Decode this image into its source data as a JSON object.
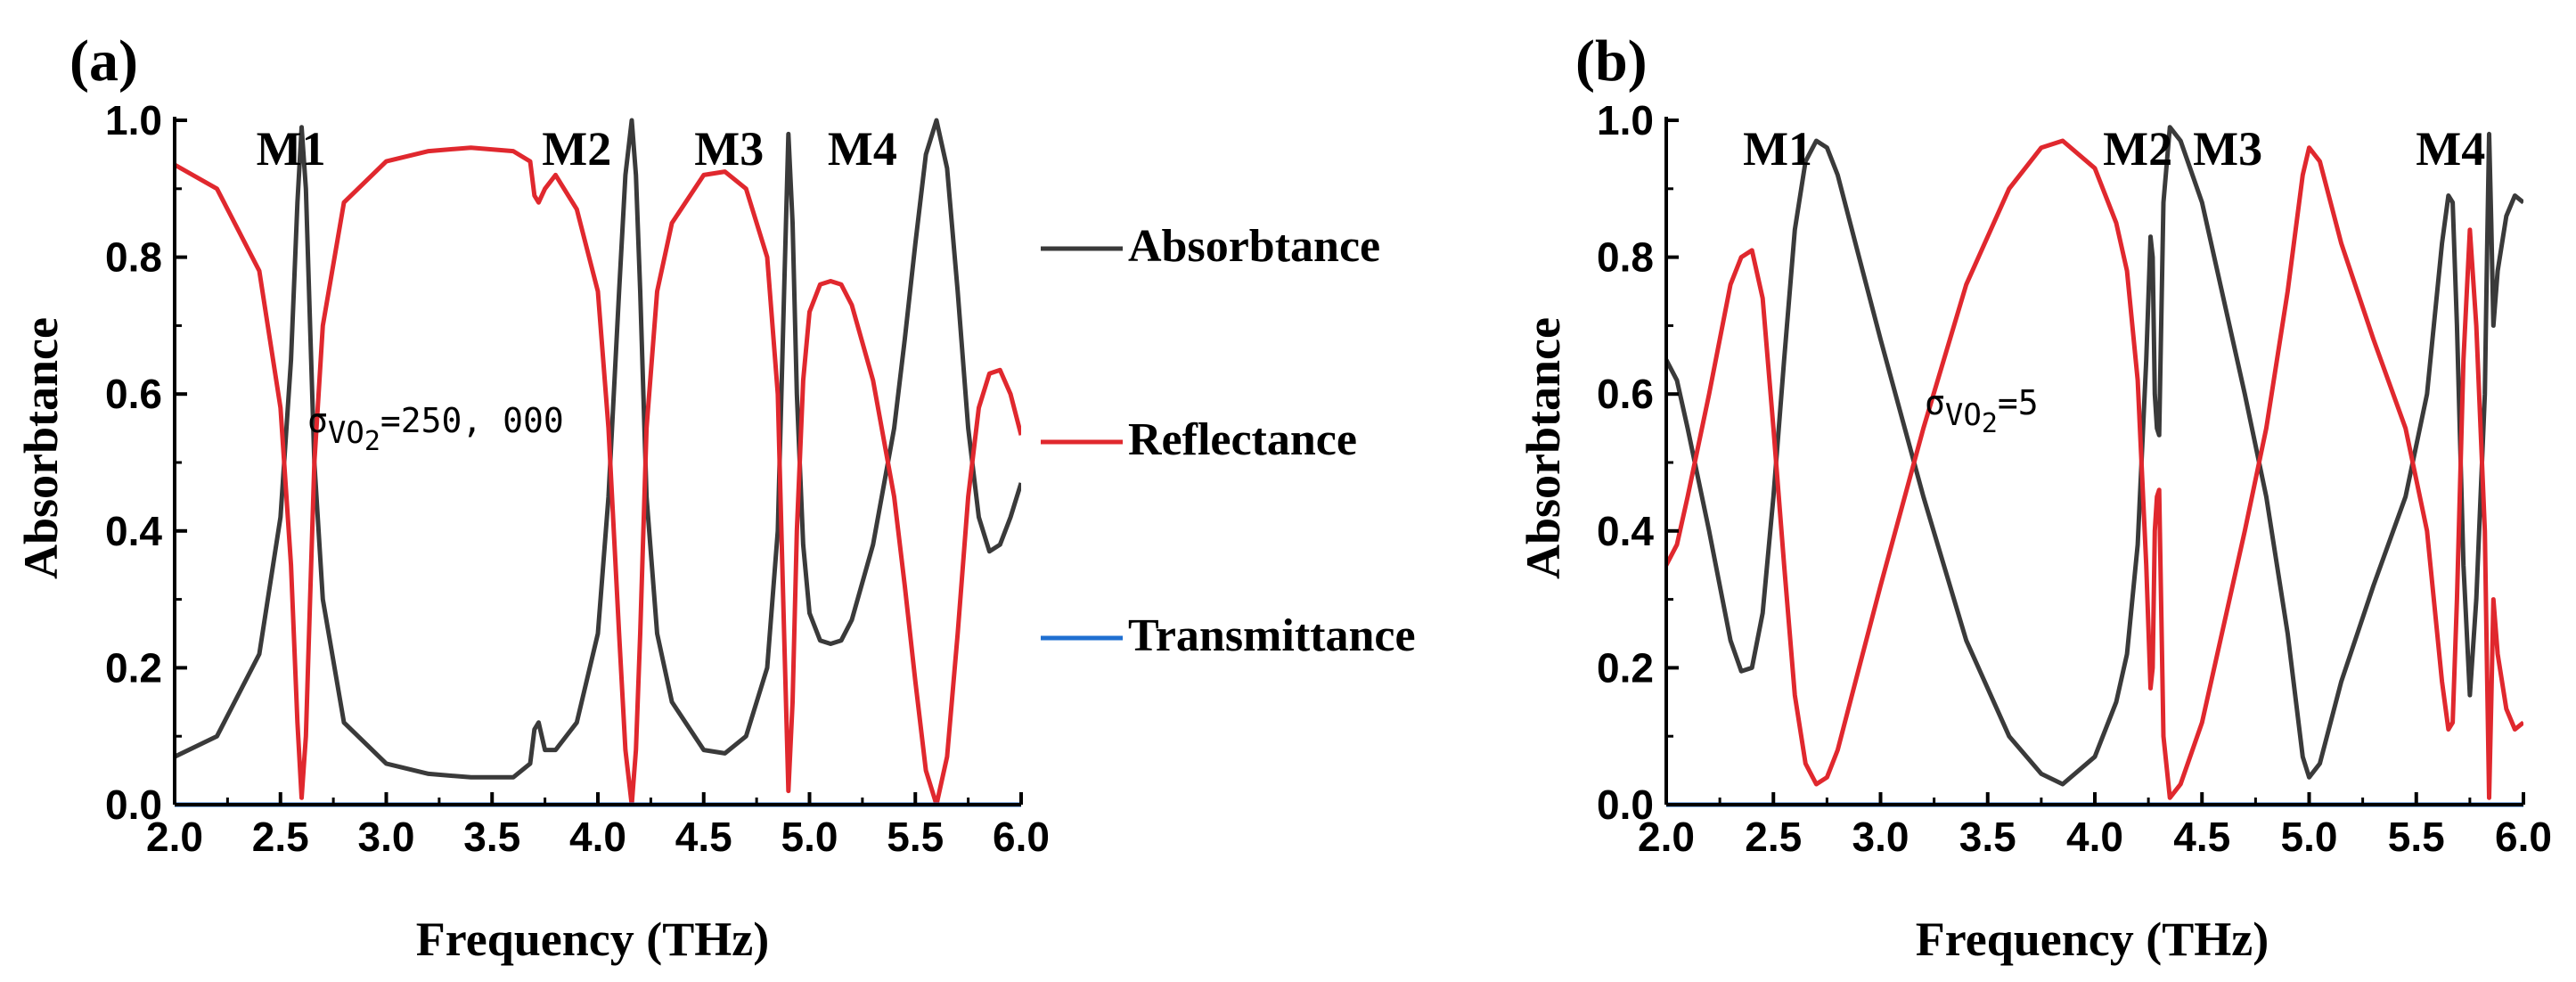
{
  "chart_data": [
    {
      "panel_label": "(a)",
      "type": "line",
      "xlabel": "Frequency (THz)",
      "ylabel": "Absorbtance",
      "xlim": [
        2.0,
        6.0
      ],
      "ylim": [
        0.0,
        1.0
      ],
      "x_ticks": [
        "2.0",
        "2.5",
        "3.0",
        "3.5",
        "4.0",
        "4.5",
        "5.0",
        "5.5",
        "6.0"
      ],
      "y_ticks": [
        "0.0",
        "0.2",
        "0.4",
        "0.6",
        "0.8",
        "1.0"
      ],
      "annotation": "σVO₂=250, 000",
      "annotation_parts": {
        "sym": "σ",
        "sub": "VO",
        "subnum": "2",
        "value": "=250, 000"
      },
      "mode_labels": [
        {
          "text": "M1",
          "x": 2.55
        },
        {
          "text": "M2",
          "x": 3.9
        },
        {
          "text": "M3",
          "x": 4.62
        },
        {
          "text": "M4",
          "x": 5.25
        }
      ],
      "series": [
        {
          "name": "Absorbtance",
          "color": "#3a3a3a",
          "x": [
            2.0,
            2.2,
            2.4,
            2.5,
            2.55,
            2.58,
            2.6,
            2.62,
            2.64,
            2.66,
            2.7,
            2.8,
            3.0,
            3.2,
            3.4,
            3.6,
            3.68,
            3.7,
            3.72,
            3.75,
            3.8,
            3.9,
            4.0,
            4.05,
            4.1,
            4.13,
            4.16,
            4.18,
            4.2,
            4.23,
            4.28,
            4.35,
            4.5,
            4.6,
            4.7,
            4.8,
            4.85,
            4.88,
            4.9,
            4.92,
            4.94,
            4.97,
            5.0,
            5.05,
            5.1,
            5.15,
            5.2,
            5.3,
            5.4,
            5.45,
            5.5,
            5.55,
            5.6,
            5.65,
            5.7,
            5.75,
            5.8,
            5.85,
            5.9,
            5.95,
            6.0
          ],
          "y": [
            0.07,
            0.1,
            0.22,
            0.42,
            0.65,
            0.88,
            0.99,
            0.9,
            0.7,
            0.5,
            0.3,
            0.12,
            0.06,
            0.045,
            0.04,
            0.04,
            0.06,
            0.11,
            0.12,
            0.08,
            0.08,
            0.12,
            0.25,
            0.45,
            0.75,
            0.92,
            1.0,
            0.92,
            0.75,
            0.45,
            0.25,
            0.15,
            0.08,
            0.075,
            0.1,
            0.2,
            0.4,
            0.75,
            0.98,
            0.85,
            0.6,
            0.38,
            0.28,
            0.24,
            0.235,
            0.24,
            0.27,
            0.38,
            0.55,
            0.68,
            0.82,
            0.95,
            1.0,
            0.93,
            0.75,
            0.55,
            0.42,
            0.37,
            0.38,
            0.42,
            0.47
          ]
        },
        {
          "name": "Reflectance",
          "color": "#e0282e",
          "x": [
            2.0,
            2.2,
            2.4,
            2.5,
            2.55,
            2.58,
            2.6,
            2.62,
            2.64,
            2.66,
            2.7,
            2.8,
            3.0,
            3.2,
            3.4,
            3.6,
            3.68,
            3.7,
            3.72,
            3.75,
            3.8,
            3.9,
            4.0,
            4.05,
            4.1,
            4.13,
            4.16,
            4.18,
            4.2,
            4.23,
            4.28,
            4.35,
            4.5,
            4.6,
            4.7,
            4.8,
            4.85,
            4.88,
            4.9,
            4.92,
            4.94,
            4.97,
            5.0,
            5.05,
            5.1,
            5.15,
            5.2,
            5.3,
            5.4,
            5.45,
            5.5,
            5.55,
            5.6,
            5.65,
            5.7,
            5.75,
            5.8,
            5.85,
            5.9,
            5.95,
            6.0
          ],
          "y": [
            0.935,
            0.9,
            0.78,
            0.58,
            0.35,
            0.12,
            0.01,
            0.1,
            0.3,
            0.5,
            0.7,
            0.88,
            0.94,
            0.955,
            0.96,
            0.955,
            0.94,
            0.89,
            0.88,
            0.9,
            0.92,
            0.87,
            0.75,
            0.55,
            0.25,
            0.08,
            0.0,
            0.08,
            0.25,
            0.55,
            0.75,
            0.85,
            0.92,
            0.925,
            0.9,
            0.8,
            0.6,
            0.25,
            0.02,
            0.15,
            0.4,
            0.62,
            0.72,
            0.76,
            0.765,
            0.76,
            0.73,
            0.62,
            0.45,
            0.32,
            0.18,
            0.05,
            0.0,
            0.07,
            0.25,
            0.45,
            0.58,
            0.63,
            0.635,
            0.6,
            0.54
          ]
        },
        {
          "name": "Transmittance",
          "color": "#1f6fd1",
          "x": [
            2.0,
            6.0
          ],
          "y": [
            0.0,
            0.0
          ]
        }
      ]
    },
    {
      "panel_label": "(b)",
      "type": "line",
      "xlabel": "Frequency (THz)",
      "ylabel": "Absorbtance",
      "xlim": [
        2.0,
        6.0
      ],
      "ylim": [
        0.0,
        1.0
      ],
      "x_ticks": [
        "2.0",
        "2.5",
        "3.0",
        "3.5",
        "4.0",
        "4.5",
        "5.0",
        "5.5",
        "6.0"
      ],
      "y_ticks": [
        "0.0",
        "0.2",
        "0.4",
        "0.6",
        "0.8",
        "1.0"
      ],
      "annotation": "σVO₂=5",
      "annotation_parts": {
        "sym": "σ",
        "sub": "VO",
        "subnum": "2",
        "value": "=5"
      },
      "mode_labels": [
        {
          "text": "M1",
          "x": 2.52
        },
        {
          "text": "M2",
          "x": 4.2
        },
        {
          "text": "M3",
          "x": 4.62
        },
        {
          "text": "M4",
          "x": 5.66
        }
      ],
      "series": [
        {
          "name": "Absorbtance",
          "color": "#3a3a3a",
          "x": [
            2.0,
            2.05,
            2.1,
            2.2,
            2.3,
            2.35,
            2.4,
            2.45,
            2.5,
            2.55,
            2.6,
            2.65,
            2.7,
            2.75,
            2.8,
            2.85,
            2.9,
            3.0,
            3.2,
            3.4,
            3.6,
            3.75,
            3.85,
            4.0,
            4.1,
            4.15,
            4.2,
            4.24,
            4.26,
            4.27,
            4.28,
            4.29,
            4.3,
            4.32,
            4.35,
            4.4,
            4.5,
            4.7,
            4.8,
            4.9,
            4.97,
            5.0,
            5.05,
            5.15,
            5.3,
            5.45,
            5.55,
            5.62,
            5.65,
            5.67,
            5.69,
            5.72,
            5.75,
            5.78,
            5.8,
            5.82,
            5.83,
            5.84,
            5.85,
            5.86,
            5.88,
            5.92,
            5.96,
            6.0
          ],
          "y": [
            0.65,
            0.62,
            0.55,
            0.4,
            0.24,
            0.195,
            0.2,
            0.28,
            0.45,
            0.65,
            0.84,
            0.94,
            0.97,
            0.96,
            0.92,
            0.86,
            0.8,
            0.68,
            0.45,
            0.24,
            0.1,
            0.045,
            0.03,
            0.07,
            0.15,
            0.22,
            0.38,
            0.65,
            0.83,
            0.8,
            0.6,
            0.55,
            0.54,
            0.88,
            0.99,
            0.97,
            0.88,
            0.6,
            0.45,
            0.25,
            0.07,
            0.04,
            0.06,
            0.18,
            0.32,
            0.45,
            0.6,
            0.82,
            0.89,
            0.88,
            0.7,
            0.35,
            0.16,
            0.3,
            0.45,
            0.6,
            0.8,
            0.98,
            0.85,
            0.7,
            0.78,
            0.86,
            0.89,
            0.88
          ]
        },
        {
          "name": "Reflectance",
          "color": "#e0282e",
          "x": [
            2.0,
            2.05,
            2.1,
            2.2,
            2.3,
            2.35,
            2.4,
            2.45,
            2.5,
            2.55,
            2.6,
            2.65,
            2.7,
            2.75,
            2.8,
            2.85,
            2.9,
            3.0,
            3.2,
            3.4,
            3.6,
            3.75,
            3.85,
            4.0,
            4.1,
            4.15,
            4.2,
            4.24,
            4.26,
            4.27,
            4.28,
            4.29,
            4.3,
            4.32,
            4.35,
            4.4,
            4.5,
            4.7,
            4.8,
            4.9,
            4.97,
            5.0,
            5.05,
            5.15,
            5.3,
            5.45,
            5.55,
            5.62,
            5.65,
            5.67,
            5.69,
            5.72,
            5.75,
            5.78,
            5.8,
            5.82,
            5.83,
            5.84,
            5.85,
            5.86,
            5.88,
            5.92,
            5.96,
            6.0
          ],
          "y": [
            0.35,
            0.38,
            0.45,
            0.6,
            0.76,
            0.8,
            0.81,
            0.74,
            0.55,
            0.35,
            0.16,
            0.06,
            0.03,
            0.04,
            0.08,
            0.14,
            0.2,
            0.32,
            0.55,
            0.76,
            0.9,
            0.96,
            0.97,
            0.93,
            0.85,
            0.78,
            0.62,
            0.35,
            0.17,
            0.2,
            0.4,
            0.45,
            0.46,
            0.1,
            0.01,
            0.03,
            0.12,
            0.4,
            0.55,
            0.75,
            0.92,
            0.96,
            0.94,
            0.82,
            0.68,
            0.55,
            0.4,
            0.18,
            0.11,
            0.12,
            0.3,
            0.65,
            0.84,
            0.7,
            0.55,
            0.4,
            0.2,
            0.01,
            0.15,
            0.3,
            0.22,
            0.14,
            0.11,
            0.12
          ]
        },
        {
          "name": "Transmittance",
          "color": "#1f6fd1",
          "x": [
            2.0,
            6.0
          ],
          "y": [
            0.0,
            0.0
          ]
        }
      ]
    }
  ],
  "legend": {
    "placement": "between-panels",
    "items": [
      {
        "label": "Absorbtance",
        "color": "#3a3a3a"
      },
      {
        "label": "Reflectance",
        "color": "#e0282e"
      },
      {
        "label": "Transmittance",
        "color": "#1f6fd1"
      }
    ]
  }
}
